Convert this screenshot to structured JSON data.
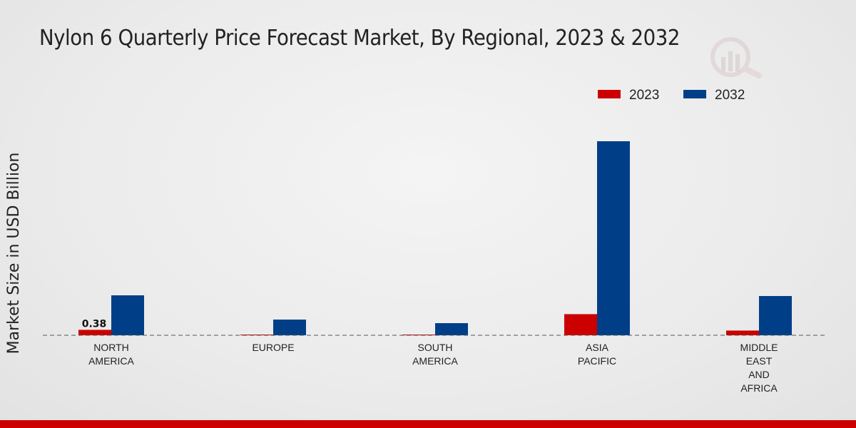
{
  "chart_data": {
    "type": "bar",
    "title": "Nylon 6 Quarterly Price Forecast Market, By Regional, 2023 & 2032",
    "xlabel": "",
    "ylabel": "Market Size in USD Billion",
    "categories": [
      [
        "NORTH",
        "AMERICA"
      ],
      [
        "EUROPE"
      ],
      [
        "SOUTH",
        "AMERICA"
      ],
      [
        "ASIA",
        "PACIFIC"
      ],
      [
        "MIDDLE",
        "EAST",
        "AND",
        "AFRICA"
      ]
    ],
    "series": [
      {
        "name": "2023",
        "color": "#cc0000",
        "values": [
          0.38,
          0.02,
          0.01,
          1.48,
          0.33
        ]
      },
      {
        "name": "2032",
        "color": "#003f87",
        "values": [
          2.8,
          1.1,
          0.85,
          13.6,
          2.75
        ]
      }
    ],
    "data_labels": [
      {
        "series": 0,
        "index": 0,
        "text": "0.38"
      }
    ],
    "ylim": [
      0,
      17
    ],
    "grid": false,
    "legend_position": "top-right"
  }
}
